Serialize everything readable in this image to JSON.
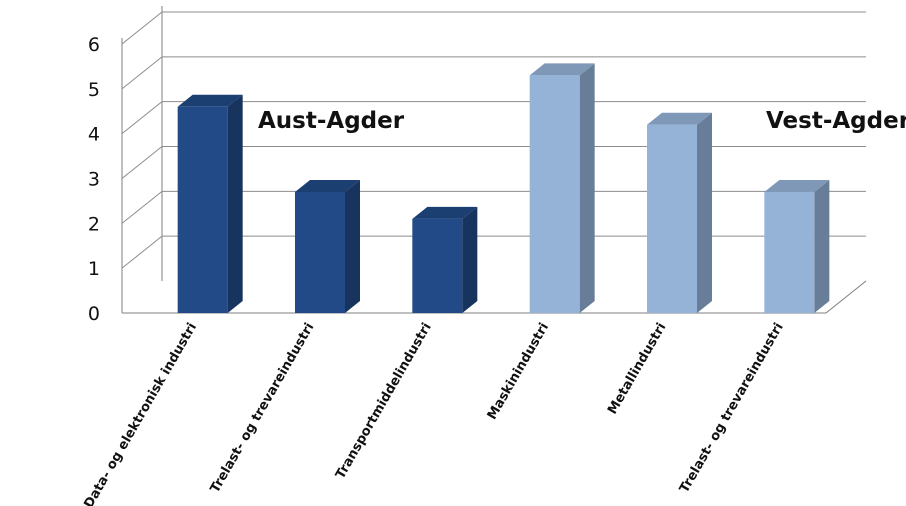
{
  "chart_data": {
    "type": "bar",
    "title": "",
    "xlabel": "",
    "ylabel": "",
    "ylim": [
      0,
      6
    ],
    "yticks": [
      0,
      1,
      2,
      3,
      4,
      5,
      6
    ],
    "grid": true,
    "three_d": true,
    "categories": [
      "Data- og elektronisk industri",
      "Trelast- og trevareindustri",
      "Transportmiddelindustri",
      "Maskinindustri",
      "Metallindustri",
      "Trelast- og trevareindustri"
    ],
    "values": [
      4.6,
      2.7,
      2.1,
      5.3,
      4.2,
      2.7
    ],
    "groups": [
      {
        "label": "Aust-Agder",
        "indices": [
          0,
          1,
          2
        ],
        "color": "#214a86"
      },
      {
        "label": "Vest-Agder",
        "indices": [
          3,
          4,
          5
        ],
        "color": "#95b3d7"
      }
    ],
    "annotations": [
      "Aust-Agder",
      "Vest-Agder"
    ]
  }
}
